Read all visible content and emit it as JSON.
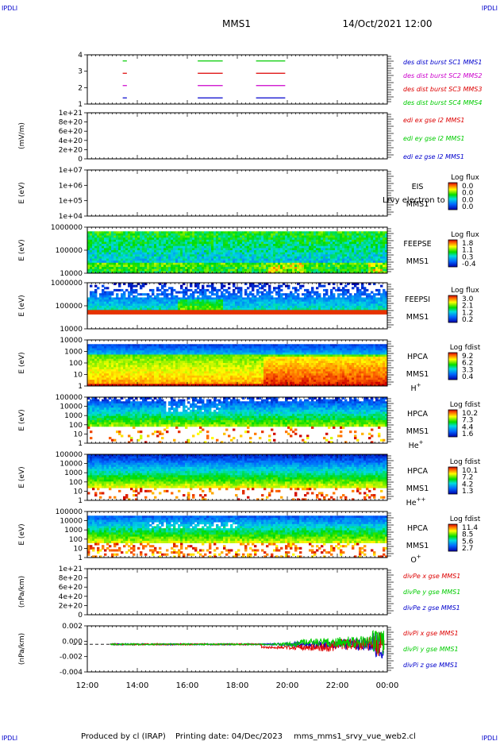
{
  "corner_tag": "IPDLI",
  "header": {
    "mission": "MMS1",
    "datetime": "14/Oct/2021 12:00"
  },
  "footer": {
    "produced_by": "Produced by cl (IRAP)",
    "printing_date": "Printing date: 04/Dec/2023",
    "filename": "mms_mms1_srvy_vue_web2.cl"
  },
  "colors": {
    "red": "#dd0000",
    "green": "#00cc00",
    "blue": "#0000cc",
    "magenta": "#cc00cc",
    "black": "#000000"
  },
  "chart_data": [
    {
      "type": "line",
      "title": "",
      "ylabel": "",
      "yticks": [
        "4",
        "3",
        "2",
        "1"
      ],
      "ylim": [
        0.5,
        4.5
      ],
      "series": [
        {
          "name": "des dist burst SC1 MMS1",
          "color": "#0000cc",
          "y": 1,
          "segments": [
            [
              "13:25",
              "13:35"
            ],
            [
              "16:25",
              "17:25"
            ],
            [
              "18:45",
              "19:55"
            ]
          ]
        },
        {
          "name": "des dist burst SC2 MMS2",
          "color": "#cc00cc",
          "y": 2,
          "segments": [
            [
              "13:25",
              "13:35"
            ],
            [
              "16:25",
              "17:25"
            ],
            [
              "18:45",
              "19:55"
            ]
          ]
        },
        {
          "name": "des dist burst SC3 MMS3",
          "color": "#dd0000",
          "y": 3,
          "segments": [
            [
              "13:25",
              "13:35"
            ],
            [
              "16:25",
              "17:25"
            ],
            [
              "18:45",
              "19:55"
            ]
          ]
        },
        {
          "name": "des dist burst SC4 MMS4",
          "color": "#00cc00",
          "y": 4,
          "segments": [
            [
              "13:25",
              "13:35"
            ],
            [
              "16:25",
              "17:25"
            ],
            [
              "18:45",
              "19:55"
            ]
          ]
        }
      ]
    },
    {
      "type": "line",
      "ylabel": "(mV/m)",
      "yticks": [
        "1e+21",
        "8e+20",
        "6e+20",
        "4e+20",
        "2e+20",
        "0"
      ],
      "ylim": [
        0,
        1e+21
      ],
      "zero_line": true,
      "series": [
        {
          "name": "edi ex gse l2 MMS1",
          "color": "#dd0000"
        },
        {
          "name": "edi ey gse l2 MMS1",
          "color": "#00cc00"
        },
        {
          "name": "edi ez gse l2 MMS1",
          "color": "#0000cc"
        }
      ]
    },
    {
      "type": "heatmap",
      "ylabel": "E (eV)",
      "yticks": [
        "1e+07",
        "1e+06",
        "1e+05",
        "1e+04"
      ],
      "ylim": [
        10000,
        10000000
      ],
      "log_y": true,
      "instrument": [
        "EIS",
        "MMS1"
      ],
      "overlay_text": "Lrvy electron to",
      "colorbar": {
        "label": "Log flux",
        "ticks": [
          "0.0",
          "0.0",
          "0.0",
          "0.0"
        ]
      },
      "empty": true
    },
    {
      "type": "heatmap",
      "ylabel": "E (eV)",
      "yticks": [
        "1000000",
        "100000",
        "10000"
      ],
      "ylim": [
        10000,
        1000000
      ],
      "log_y": true,
      "instrument": [
        "FEEPSE",
        "MMS1"
      ],
      "colorbar": {
        "label": "Log flux",
        "ticks": [
          "1.8",
          "1.1",
          "0.3",
          "-0.4"
        ]
      }
    },
    {
      "type": "heatmap",
      "ylabel": "E (eV)",
      "yticks": [
        "1000000",
        "100000",
        "10000"
      ],
      "ylim": [
        10000,
        1000000
      ],
      "log_y": true,
      "instrument": [
        "FEEPSI",
        "MMS1"
      ],
      "colorbar": {
        "label": "Log flux",
        "ticks": [
          "3.0",
          "2.1",
          "1.2",
          "0.2"
        ]
      }
    },
    {
      "type": "heatmap",
      "ylabel": "E (eV)",
      "yticks": [
        "10000",
        "1000",
        "100",
        "10",
        "1"
      ],
      "ylim": [
        1,
        30000
      ],
      "log_y": true,
      "instrument": [
        "HPCA",
        "MMS1"
      ],
      "species": "H",
      "charge": "+",
      "colorbar": {
        "label": "Log fdist",
        "ticks": [
          "9.2",
          "6.2",
          "3.3",
          "0.4"
        ]
      }
    },
    {
      "type": "heatmap",
      "ylabel": "E (eV)",
      "yticks": [
        "100000",
        "10000",
        "1000",
        "100",
        "10",
        "1"
      ],
      "ylim": [
        1,
        100000
      ],
      "log_y": true,
      "instrument": [
        "HPCA",
        "MMS1"
      ],
      "species": "He",
      "charge": "+",
      "colorbar": {
        "label": "Log fdist",
        "ticks": [
          "10.2",
          "7.3",
          "4.4",
          "1.6"
        ]
      }
    },
    {
      "type": "heatmap",
      "ylabel": "E (eV)",
      "yticks": [
        "100000",
        "10000",
        "1000",
        "100",
        "10",
        "1"
      ],
      "ylim": [
        1,
        100000
      ],
      "log_y": true,
      "instrument": [
        "HPCA",
        "MMS1"
      ],
      "species": "He",
      "charge": "++",
      "colorbar": {
        "label": "Log fdist",
        "ticks": [
          "10.1",
          "7.2",
          "4.2",
          "1.3"
        ]
      }
    },
    {
      "type": "heatmap",
      "ylabel": "E (eV)",
      "yticks": [
        "100000",
        "10000",
        "1000",
        "100",
        "10",
        "1"
      ],
      "ylim": [
        1,
        100000
      ],
      "log_y": true,
      "instrument": [
        "HPCA",
        "MMS1"
      ],
      "species": "O",
      "charge": "+",
      "colorbar": {
        "label": "Log fdist",
        "ticks": [
          "11.4",
          "8.5",
          "5.6",
          "2.7"
        ]
      }
    },
    {
      "type": "line",
      "ylabel": "(nPa/km)",
      "yticks": [
        "1e+21",
        "8e+20",
        "6e+20",
        "4e+20",
        "2e+20",
        "0"
      ],
      "ylim": [
        0,
        1e+21
      ],
      "zero_line": true,
      "series": [
        {
          "name": "divPe x gse MMS1",
          "color": "#dd0000"
        },
        {
          "name": "divPe y gse MMS1",
          "color": "#00cc00"
        },
        {
          "name": "divPe z gse MMS1",
          "color": "#0000cc"
        }
      ]
    },
    {
      "type": "line",
      "ylabel": "(nPa/km)",
      "yticks": [
        "0.002",
        "0.000",
        "-0.002",
        "-0.004"
      ],
      "ylim": [
        -0.0045,
        0.003
      ],
      "zero_line": true,
      "series": [
        {
          "name": "divPi x gse MMS1",
          "color": "#dd0000"
        },
        {
          "name": "divPi y gse MMS1",
          "color": "#00cc00"
        },
        {
          "name": "divPi z gse MMS1",
          "color": "#0000cc"
        }
      ]
    }
  ],
  "x_axis": {
    "ticks": [
      "12:00",
      "14:00",
      "16:00",
      "18:00",
      "20:00",
      "22:00",
      "00:00"
    ]
  }
}
